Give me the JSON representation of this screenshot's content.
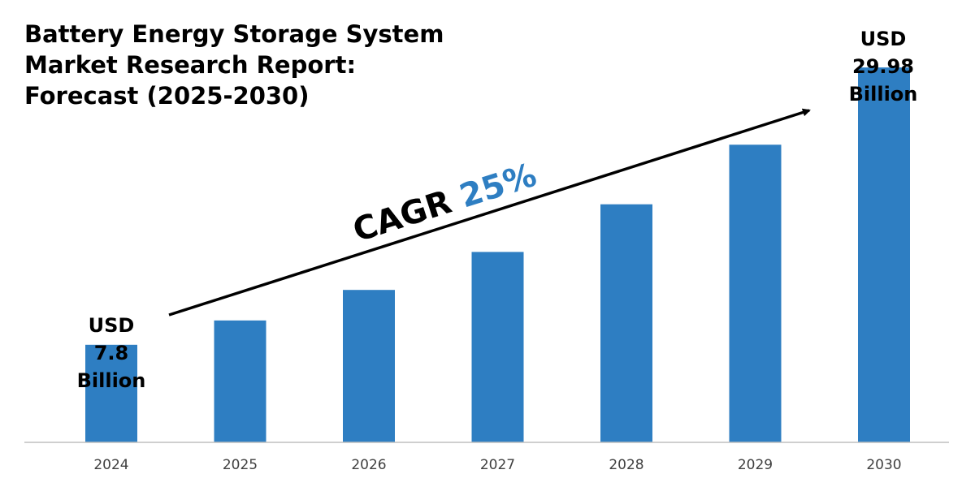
{
  "chart_data": {
    "type": "bar",
    "title_lines": [
      "Battery Energy Storage System",
      "Market Research Report:",
      "Forecast (2025-2030)"
    ],
    "categories": [
      "2024",
      "2025",
      "2026",
      "2027",
      "2028",
      "2029",
      "2030"
    ],
    "values": [
      7.8,
      9.75,
      12.19,
      15.23,
      19.04,
      23.8,
      29.98
    ],
    "ylim": [
      0,
      32
    ],
    "unit": "USD Billion",
    "grid": false,
    "start_label": [
      "USD",
      "7.8",
      "Billion"
    ],
    "end_label": [
      "USD",
      "29.98",
      "Billion"
    ],
    "cagr_label": "CAGR",
    "cagr_value": "25%",
    "bar_color": "#2e7ec2",
    "cagr_value_color": "#2e7ec2",
    "axis_color": "#bfbfbf",
    "arrow_color": "#000000"
  }
}
